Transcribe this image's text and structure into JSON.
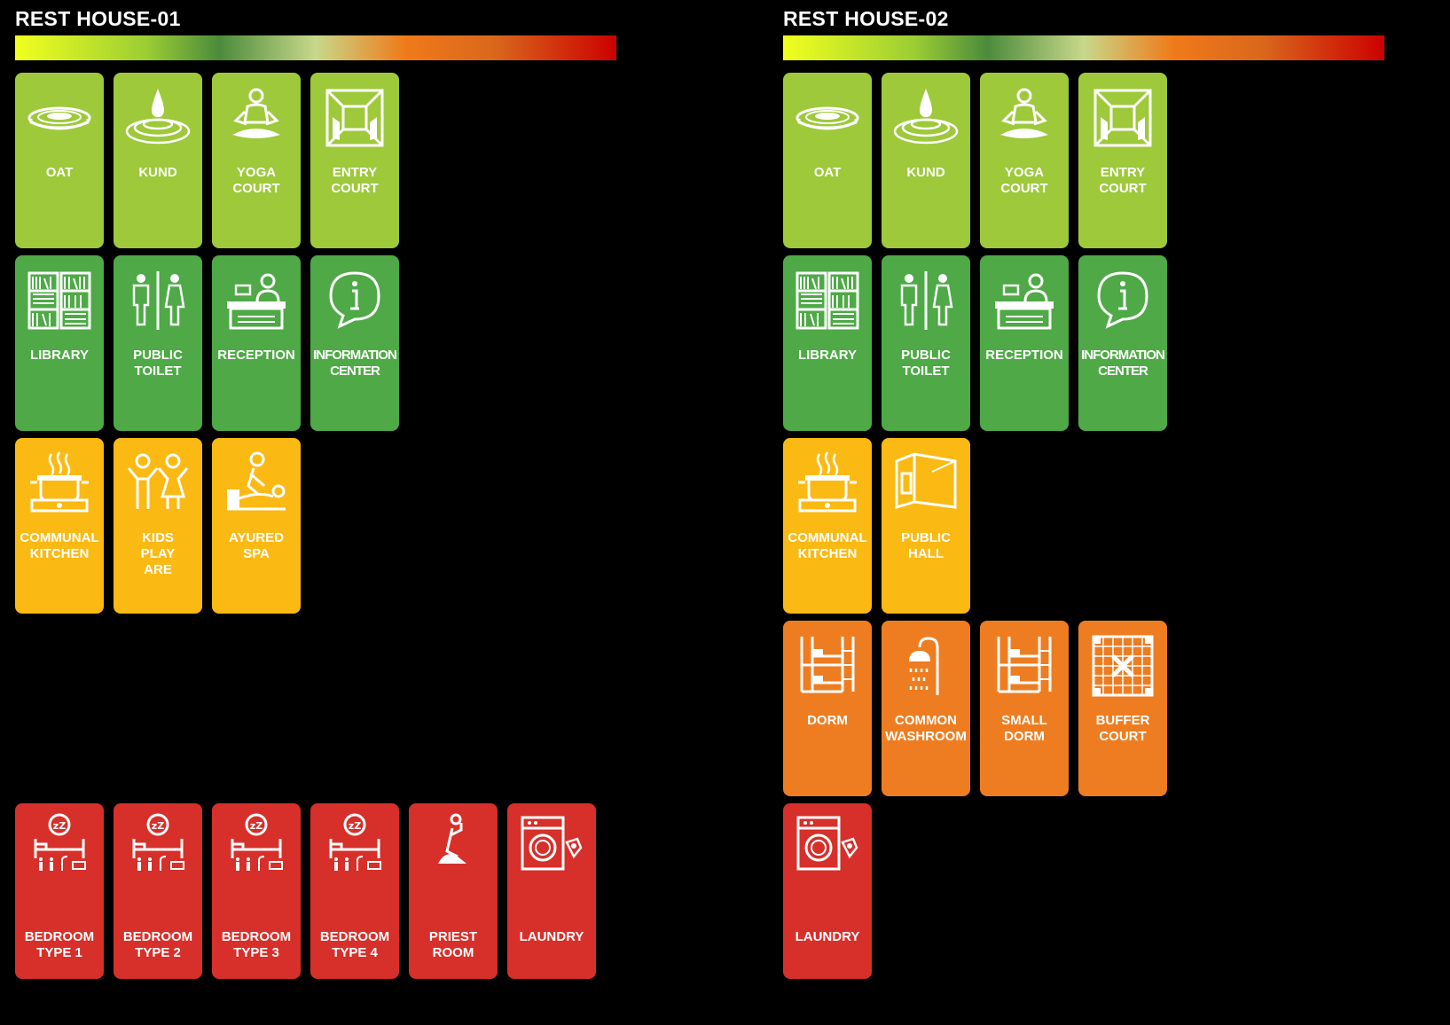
{
  "colors": {
    "lime": "#9DC93B",
    "green": "#4EA946",
    "yellow": "#FBB913",
    "orange": "#EE7D21",
    "red": "#D72F2A",
    "gradient": [
      "#F2FF1E",
      "#9ACD34",
      "#4B8B3B",
      "#C8D88A",
      "#F07A1A",
      "#D9661C",
      "#CC0000"
    ]
  },
  "panels": [
    {
      "title": "REST HOUSE-01",
      "cards": [
        {
          "label": "OAT",
          "icon": "amphitheatre-icon",
          "color": "lime"
        },
        {
          "label": "KUND",
          "icon": "water-drop-icon",
          "color": "lime"
        },
        {
          "label": "YOGA\nCOURT",
          "icon": "meditation-icon",
          "color": "lime"
        },
        {
          "label": "ENTRY\nCOURT",
          "icon": "corridor-icon",
          "color": "lime"
        },
        {
          "label": "LIBRARY",
          "icon": "bookshelf-icon",
          "color": "green"
        },
        {
          "label": "PUBLIC\nTOILET",
          "icon": "toilet-icon",
          "color": "green"
        },
        {
          "label": "RECEPTION",
          "icon": "reception-desk-icon",
          "color": "green"
        },
        {
          "label": "INFORMATION\nCENTER",
          "icon": "info-icon",
          "color": "green"
        },
        {
          "label": "COMMUNAL\nKITCHEN",
          "icon": "cooking-pot-icon",
          "color": "yellow"
        },
        {
          "label": "KIDS\nPLAY\nARE",
          "icon": "kids-icon",
          "color": "yellow"
        },
        {
          "label": "AYURED\nSPA",
          "icon": "massage-icon",
          "color": "yellow"
        },
        {
          "label": "BEDROOM\nTYPE 1",
          "icon": "bedroom-icon",
          "color": "red"
        },
        {
          "label": "BEDROOM\nTYPE 2",
          "icon": "bedroom-icon",
          "color": "red"
        },
        {
          "label": "BEDROOM\nTYPE 3",
          "icon": "bedroom-icon",
          "color": "red"
        },
        {
          "label": "BEDROOM\nTYPE 4",
          "icon": "bedroom-icon",
          "color": "red"
        },
        {
          "label": "PRIEST\nROOM",
          "icon": "prayer-icon",
          "color": "red"
        },
        {
          "label": "LAUNDRY",
          "icon": "washing-machine-icon",
          "color": "red"
        }
      ]
    },
    {
      "title": "REST HOUSE-02",
      "cards": [
        {
          "label": "OAT",
          "icon": "amphitheatre-icon",
          "color": "lime"
        },
        {
          "label": "KUND",
          "icon": "water-drop-icon",
          "color": "lime"
        },
        {
          "label": "YOGA\nCOURT",
          "icon": "meditation-icon",
          "color": "lime"
        },
        {
          "label": "ENTRY\nCOURT",
          "icon": "corridor-icon",
          "color": "lime"
        },
        {
          "label": "LIBRARY",
          "icon": "bookshelf-icon",
          "color": "green"
        },
        {
          "label": "PUBLIC\nTOILET",
          "icon": "toilet-icon",
          "color": "green"
        },
        {
          "label": "RECEPTION",
          "icon": "reception-desk-icon",
          "color": "green"
        },
        {
          "label": "INFORMATION\nCENTER",
          "icon": "info-icon",
          "color": "green"
        },
        {
          "label": "COMMUNAL\nKITCHEN",
          "icon": "cooking-pot-icon",
          "color": "yellow"
        },
        {
          "label": "PUBLIC\nHALL",
          "icon": "hall-icon",
          "color": "yellow"
        },
        {
          "label": "DORM",
          "icon": "bunk-bed-icon",
          "color": "orange"
        },
        {
          "label": "COMMON\nWASHROOM",
          "icon": "shower-icon",
          "color": "orange"
        },
        {
          "label": "SMALL\nDORM",
          "icon": "bunk-bed-icon",
          "color": "orange"
        },
        {
          "label": "BUFFER\nCOURT",
          "icon": "grid-court-icon",
          "color": "orange"
        },
        {
          "label": "LAUNDRY",
          "icon": "washing-machine-icon",
          "color": "red"
        }
      ]
    }
  ]
}
